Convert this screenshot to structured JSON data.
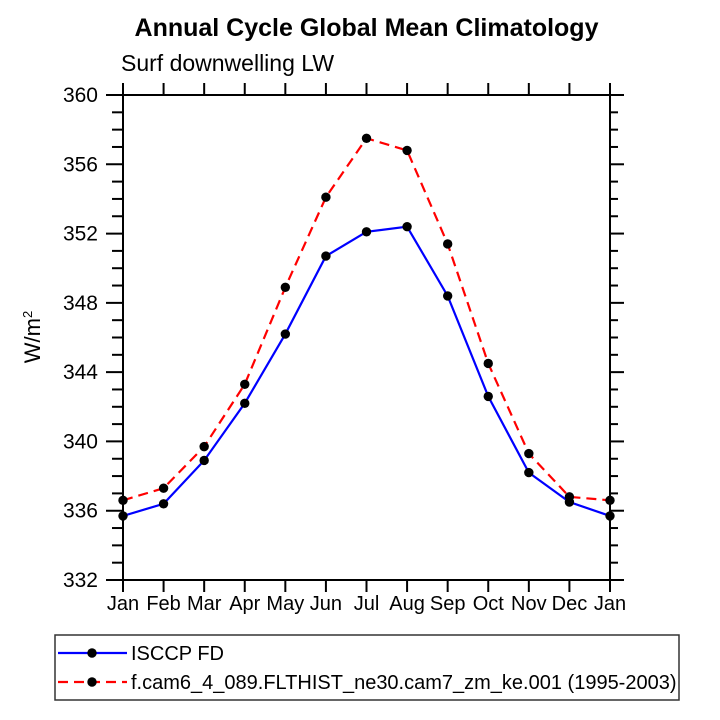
{
  "title": "Annual Cycle Global Mean Climatology",
  "subtitle": "Surf downwelling LW",
  "y_axis": {
    "label_base": "W/m",
    "label_sup": "2"
  },
  "chart_data": {
    "type": "line",
    "title": "Annual Cycle Global Mean Climatology",
    "subtitle": "Surf downwelling LW",
    "ylabel": "W/m2",
    "x_tick_labels": [
      "Jan",
      "Feb",
      "Mar",
      "Apr",
      "May",
      "Jun",
      "Jul",
      "Aug",
      "Sep",
      "Oct",
      "Nov",
      "Dec",
      "Jan"
    ],
    "ylim": [
      332,
      360
    ],
    "ytick_major": 4,
    "ytick_minor": 1,
    "grid": false,
    "legend_position": "bottom",
    "axis_color": "#000000",
    "background_color": "#ffffff",
    "series": [
      {
        "name": "ISCCP FD",
        "color": "#0000ff",
        "line_style": "solid",
        "marker": "circle",
        "marker_color": "#000000",
        "values": [
          335.7,
          336.4,
          338.9,
          342.2,
          346.2,
          350.7,
          352.1,
          352.4,
          348.4,
          342.6,
          338.2,
          336.5,
          335.7
        ]
      },
      {
        "name": "f.cam6_4_089.FLTHIST_ne30.cam7_zm_ke.001 (1995-2003)",
        "color": "#ff0000",
        "line_style": "dashed",
        "marker": "circle",
        "marker_color": "#000000",
        "values": [
          336.6,
          337.3,
          339.7,
          343.3,
          348.9,
          354.1,
          357.5,
          356.8,
          351.4,
          344.5,
          339.3,
          336.8,
          336.6
        ]
      }
    ]
  }
}
